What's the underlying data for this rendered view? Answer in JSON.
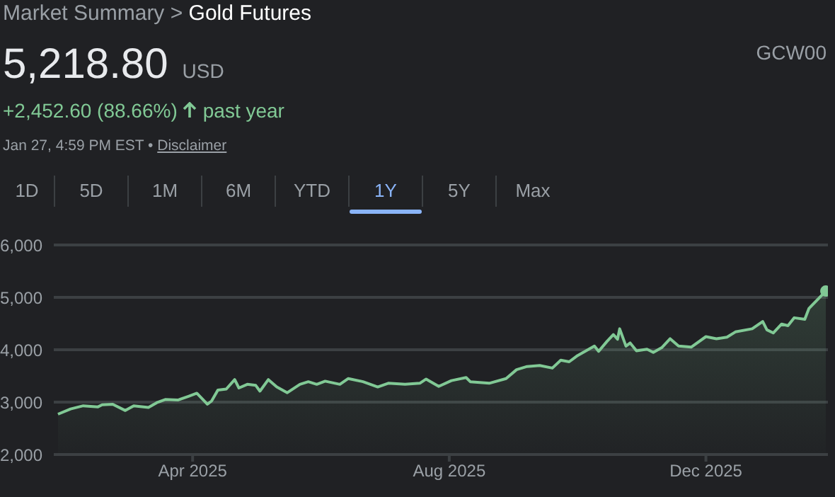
{
  "chart_data": {
    "type": "area",
    "title": "Gold Futures",
    "annotations": [
      "Market Summary >",
      "5,218.80",
      "USD",
      "GCW00",
      "+2,452.60 (88.66%)",
      "past year",
      "Jan 27, 4:59 PM EST •",
      "Disclaimer",
      "1D",
      "5D",
      "1M",
      "6M",
      "YTD",
      "1Y",
      "5Y",
      "Max"
    ],
    "x": [
      "2025-01-27",
      "2025-02-02",
      "2025-02-08",
      "2025-02-15",
      "2025-02-17",
      "2025-02-22",
      "2025-02-28",
      "2025-03-04",
      "2025-03-11",
      "2025-03-15",
      "2025-03-19",
      "2025-03-25",
      "2025-03-30",
      "2025-04-03",
      "2025-04-08",
      "2025-04-10",
      "2025-04-13",
      "2025-04-17",
      "2025-04-21",
      "2025-04-23",
      "2025-04-27",
      "2025-05-01",
      "2025-05-03",
      "2025-05-07",
      "2025-05-11",
      "2025-05-16",
      "2025-05-22",
      "2025-05-26",
      "2025-05-30",
      "2025-06-03",
      "2025-06-10",
      "2025-06-14",
      "2025-06-21",
      "2025-06-28",
      "2025-07-03",
      "2025-07-11",
      "2025-07-18",
      "2025-07-21",
      "2025-07-27",
      "2025-08-02",
      "2025-08-09",
      "2025-08-11",
      "2025-08-20",
      "2025-08-28",
      "2025-09-02",
      "2025-09-07",
      "2025-09-13",
      "2025-09-19",
      "2025-09-23",
      "2025-09-27",
      "2025-10-01",
      "2025-10-09",
      "2025-10-11",
      "2025-10-15",
      "2025-10-18",
      "2025-10-20",
      "2025-10-21",
      "2025-10-24",
      "2025-10-26",
      "2025-10-29",
      "2025-11-03",
      "2025-11-06",
      "2025-11-10",
      "2025-11-14",
      "2025-11-18",
      "2025-11-24",
      "2025-12-01",
      "2025-12-06",
      "2025-12-11",
      "2025-12-15",
      "2025-12-23",
      "2025-12-28",
      "2025-12-30",
      "2026-01-02",
      "2026-01-06",
      "2026-01-09",
      "2026-01-12",
      "2026-01-17",
      "2026-01-19",
      "2026-01-27"
    ],
    "series": [
      {
        "color": "#81c995",
        "values": [
          2770,
          2870,
          2930,
          2910,
          2950,
          2960,
          2840,
          2930,
          2900,
          2990,
          3050,
          3040,
          3110,
          3170,
          2960,
          3020,
          3230,
          3250,
          3430,
          3270,
          3340,
          3320,
          3210,
          3430,
          3290,
          3180,
          3340,
          3390,
          3340,
          3400,
          3340,
          3450,
          3390,
          3290,
          3360,
          3340,
          3360,
          3440,
          3300,
          3410,
          3470,
          3390,
          3360,
          3450,
          3620,
          3680,
          3700,
          3650,
          3800,
          3770,
          3890,
          4070,
          3970,
          4160,
          4290,
          4200,
          4400,
          4070,
          4130,
          3980,
          4010,
          3950,
          4040,
          4210,
          4070,
          4050,
          4250,
          4210,
          4240,
          4340,
          4400,
          4540,
          4380,
          4320,
          4490,
          4460,
          4610,
          4580,
          4790,
          5120
        ]
      }
    ],
    "xlim": [
      "2025-01-25",
      "2026-01-28"
    ],
    "xticks": [
      {
        "value": "2025-04-01",
        "label": "Apr 2025"
      },
      {
        "value": "2025-08-01",
        "label": "Aug 2025"
      },
      {
        "value": "2025-12-01",
        "label": "Dec 2025"
      }
    ],
    "ylim": [
      2000,
      6000
    ],
    "yticks": [
      {
        "value": 2000,
        "label": "2,000"
      },
      {
        "value": 3000,
        "label": "3,000"
      },
      {
        "value": 4000,
        "label": "4,000"
      },
      {
        "value": 5000,
        "label": "5,000"
      },
      {
        "value": 6000,
        "label": "6,000"
      }
    ],
    "grid": "y",
    "legend": false,
    "marker": "none",
    "line_style": "solid"
  }
}
